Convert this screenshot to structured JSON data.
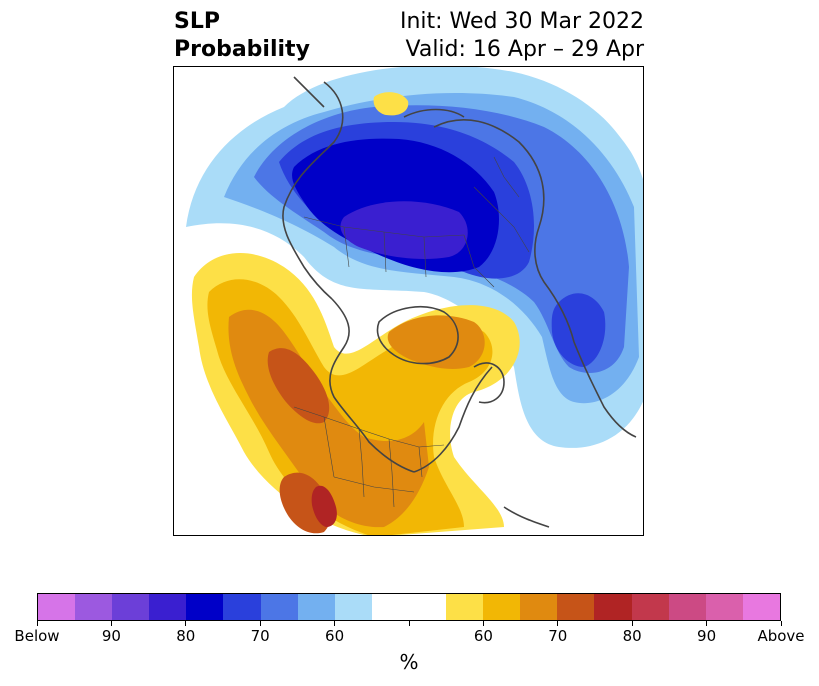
{
  "title": {
    "left_line1": "SLP",
    "left_line2": "Probability",
    "right_line1": "Init: Wed 30 Mar 2022",
    "right_line2": "Valid: 16 Apr – 29 Apr"
  },
  "colorbar": {
    "colors": [
      "#d674e8",
      "#9c59e0",
      "#6c3fd8",
      "#3a1fd0",
      "#0000c8",
      "#2a40dc",
      "#4c76e6",
      "#73b0f0",
      "#aadcf8",
      "#ffffff",
      "#ffffff",
      "#fde047",
      "#f2b705",
      "#e08a10",
      "#c65418",
      "#b02424",
      "#c2384c",
      "#cc4a84",
      "#da60ac",
      "#e878e0"
    ],
    "tick_labels": [
      "Below",
      "90",
      "80",
      "70",
      "60",
      "",
      "60",
      "70",
      "80",
      "90",
      "Above"
    ],
    "unit_label": "%"
  },
  "map": {
    "colors": {
      "blue_light": "#aadcf8",
      "blue_mid": "#73b0f0",
      "blue_med": "#4c76e6",
      "blue_strong": "#2a40dc",
      "blue_deep": "#0000c8",
      "blue_purple": "#3a1fd0",
      "yellow": "#fde047",
      "gold": "#f2b705",
      "orange": "#e08a10",
      "rust": "#c65418",
      "red": "#b02424",
      "coast": "#444444"
    }
  }
}
